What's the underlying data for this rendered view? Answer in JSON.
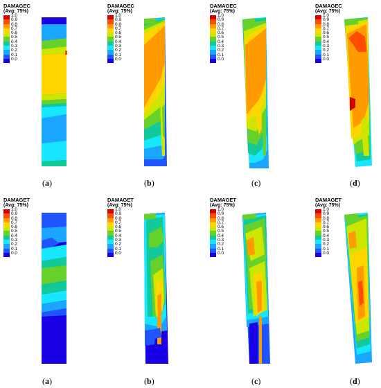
{
  "scale_values": [
    "1.0",
    "0.9",
    "0.8",
    "0.7",
    "0.6",
    "0.5",
    "0.4",
    "0.3",
    "0.2",
    "0.1",
    "0.0"
  ],
  "scale_colors": [
    "#d40000",
    "#ff4d00",
    "#ff9a00",
    "#ffd500",
    "#cde600",
    "#66d12a",
    "#12c99a",
    "#17e6ff",
    "#1aa6ff",
    "#1f55ff",
    "#1a00e6"
  ],
  "rows": [
    {
      "variable": "DAMAGEC",
      "avg": "(Avg: 75%)",
      "panels": [
        {
          "caption_open": "(",
          "caption_letter": "a",
          "caption_close": ")"
        },
        {
          "caption_open": "(",
          "caption_letter": "b",
          "caption_close": ")"
        },
        {
          "caption_open": "(",
          "caption_letter": "c",
          "caption_close": ")"
        },
        {
          "caption_open": "(",
          "caption_letter": "d",
          "caption_close": ")"
        }
      ]
    },
    {
      "variable": "DAMAGET",
      "avg": "(Avg: 75%)",
      "panels": [
        {
          "caption_open": "(",
          "caption_letter": "a",
          "caption_close": ")"
        },
        {
          "caption_open": "(",
          "caption_letter": "b",
          "caption_close": ")"
        },
        {
          "caption_open": "(",
          "caption_letter": "c",
          "caption_close": ")"
        },
        {
          "caption_open": "(",
          "caption_letter": "d",
          "caption_close": ")"
        }
      ]
    }
  ]
}
